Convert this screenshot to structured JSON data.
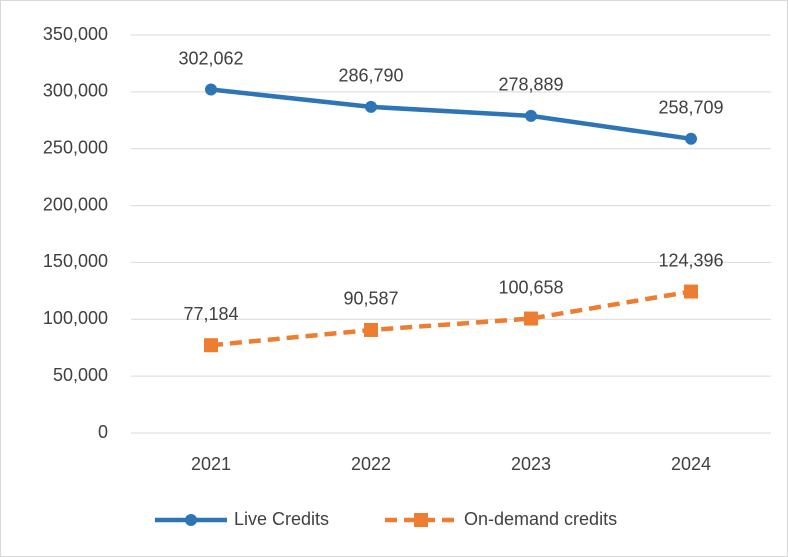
{
  "chart_data": {
    "type": "line",
    "categories": [
      "2021",
      "2022",
      "2023",
      "2024"
    ],
    "series": [
      {
        "name": "Live Credits",
        "color": "#2e75b6",
        "marker": "circle",
        "dash": false,
        "values": [
          302062,
          286790,
          278889,
          258709
        ],
        "value_labels": [
          "302,062",
          "286,790",
          "278,889",
          "258,709"
        ]
      },
      {
        "name": "On-demand credits",
        "color": "#ed7d31",
        "marker": "square",
        "dash": true,
        "values": [
          77184,
          90587,
          100658,
          124396
        ],
        "value_labels": [
          "77,184",
          "90,587",
          "100,658",
          "124,396"
        ]
      }
    ],
    "ylim": [
      0,
      350000
    ],
    "yticks": [
      0,
      {
        "value": 50000,
        "label": "50,000"
      },
      {
        "value": 100000,
        "label": "100,000"
      },
      {
        "value": 150000,
        "label": "150,000"
      },
      {
        "value": 200000,
        "label": "200,000"
      },
      {
        "value": 250000,
        "label": "250,000"
      },
      {
        "value": 300000,
        "label": "300,000"
      },
      {
        "value": 350000,
        "label": "350,000"
      }
    ],
    "grid": true,
    "legend": "bottom"
  }
}
